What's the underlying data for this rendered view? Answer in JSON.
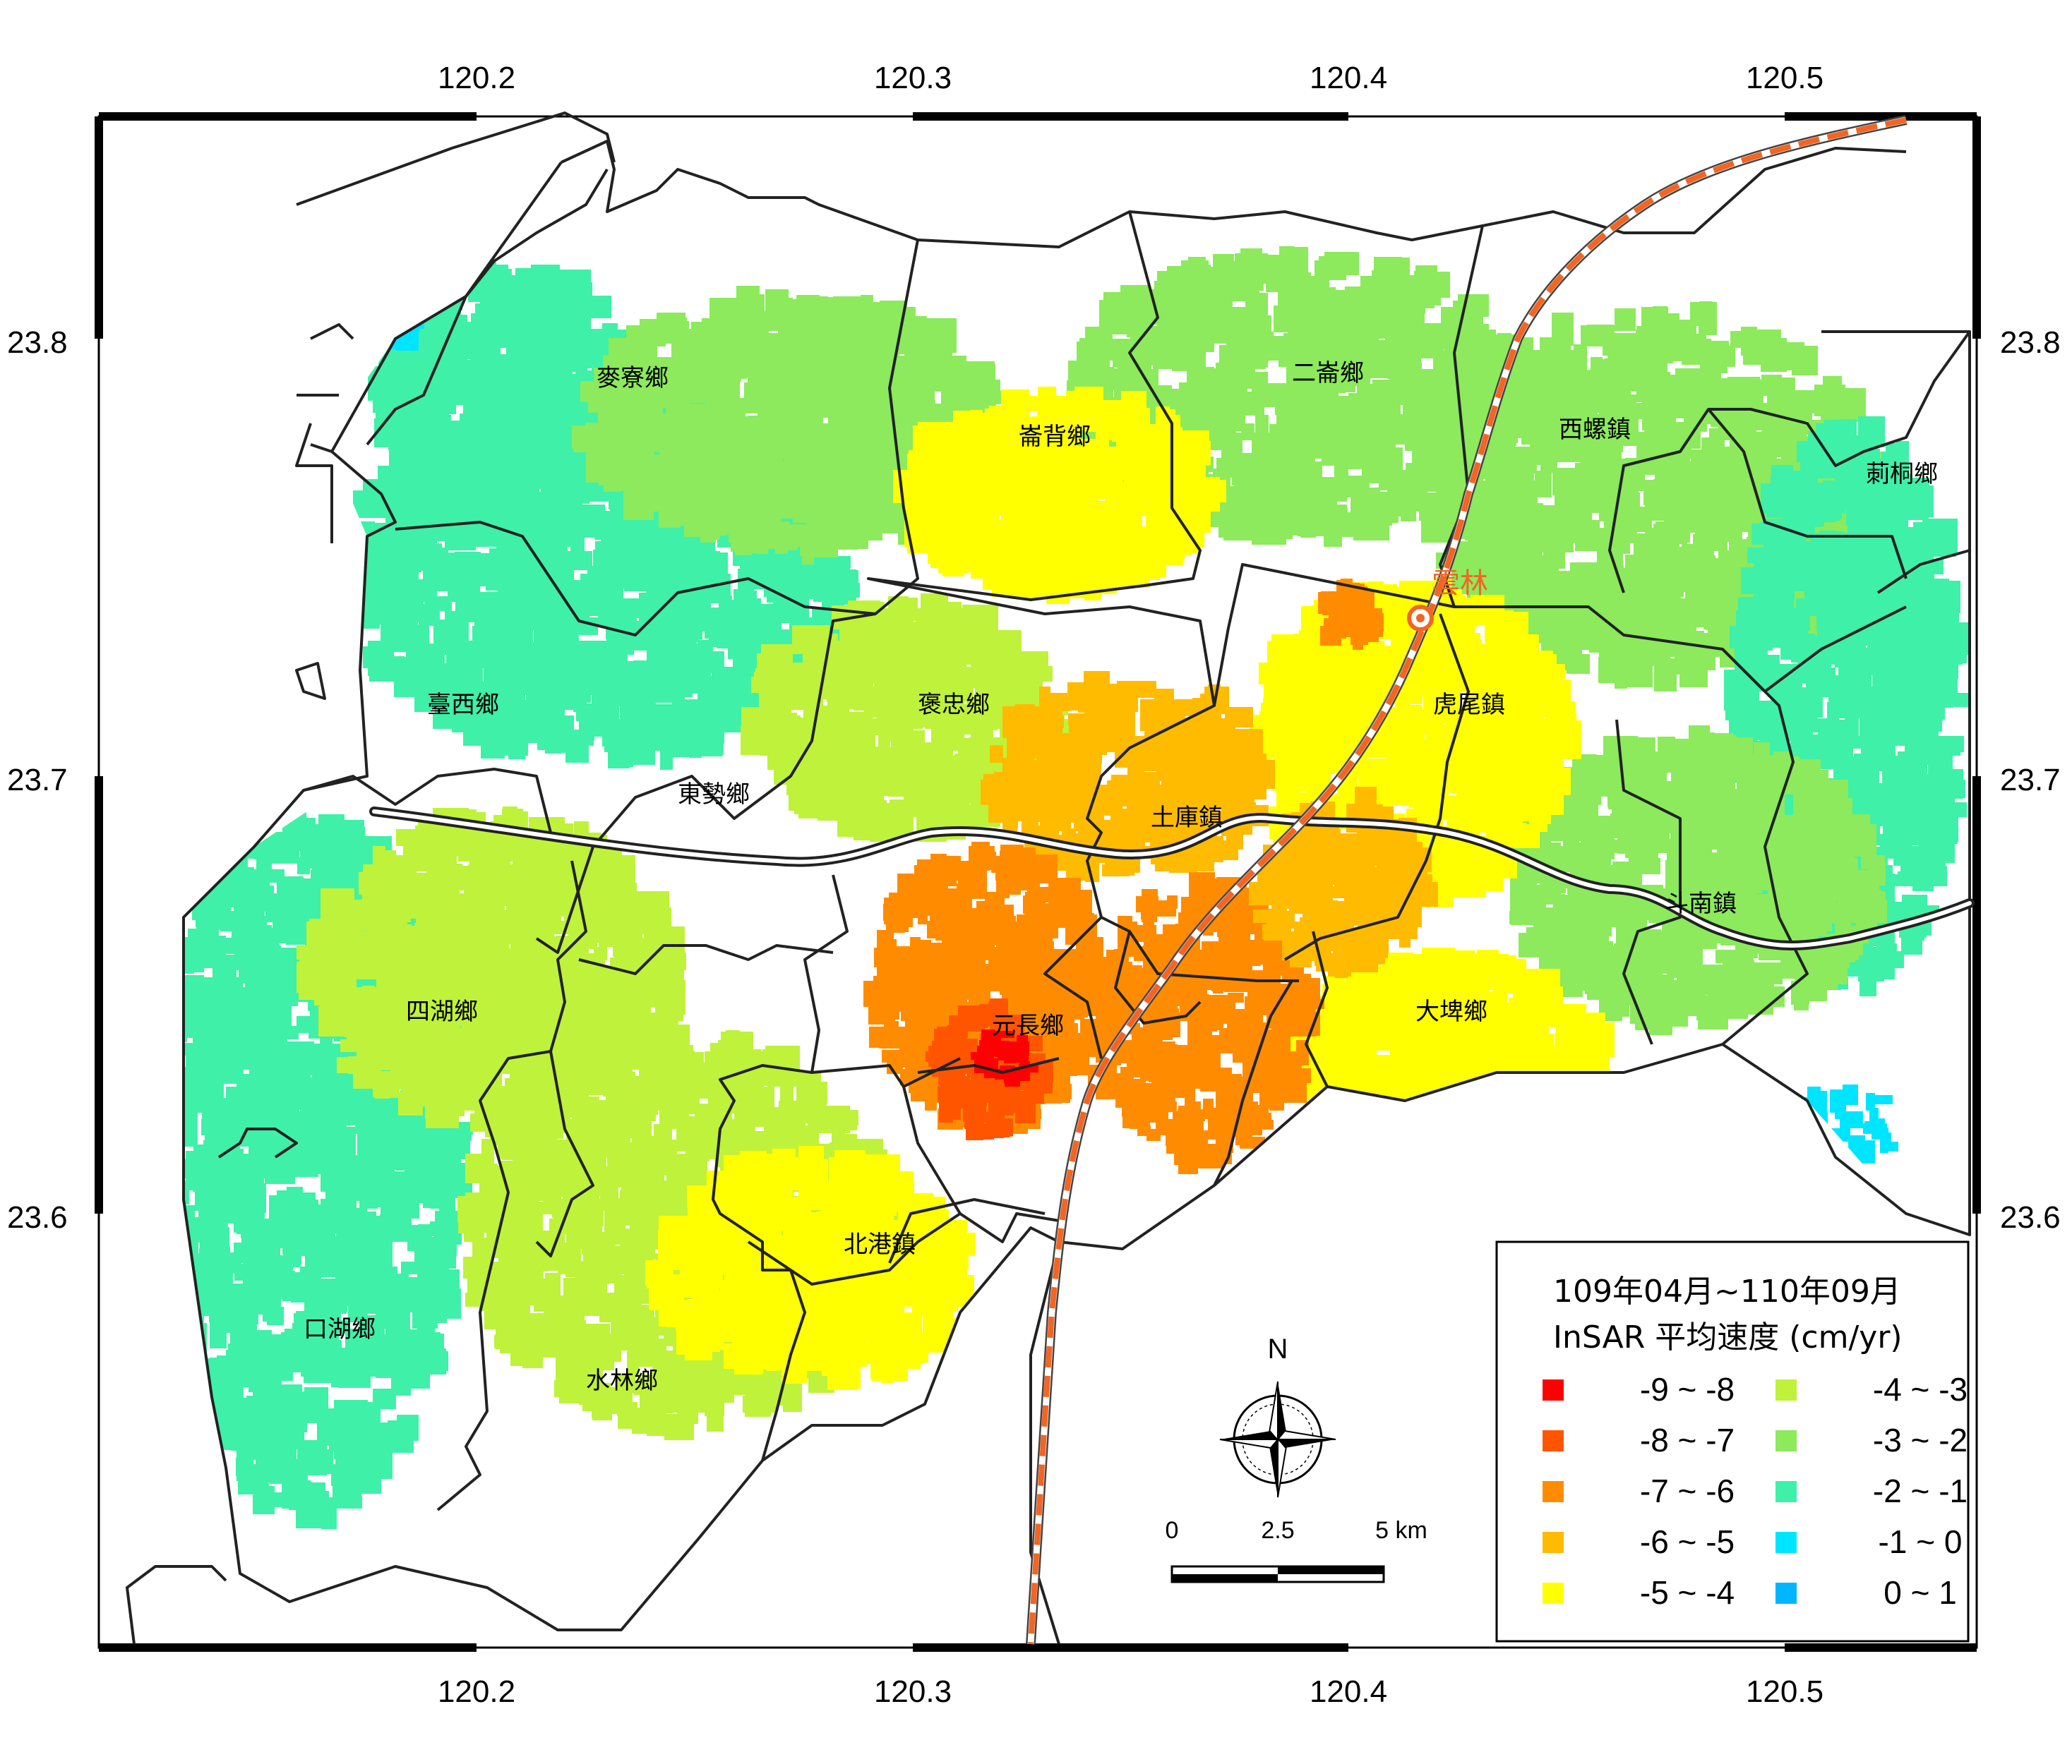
{
  "map": {
    "lon_ticks": [
      "120.2",
      "120.3",
      "120.4",
      "120.5"
    ],
    "lat_ticks": [
      "23.8",
      "23.7",
      "23.6"
    ],
    "towns": [
      {
        "key": "maizhai",
        "label": "麥寮鄉"
      },
      {
        "key": "erlun",
        "label": "二崙鄉"
      },
      {
        "key": "lunbei",
        "label": "崙背鄉"
      },
      {
        "key": "xiluo",
        "label": "西螺鎮"
      },
      {
        "key": "citong",
        "label": "莿桐鄉"
      },
      {
        "key": "taixi",
        "label": "臺西鄉"
      },
      {
        "key": "baozhong",
        "label": "褒忠鄉"
      },
      {
        "key": "huwei",
        "label": "虎尾鎮"
      },
      {
        "key": "dongshi",
        "label": "東勢鄉"
      },
      {
        "key": "tuku",
        "label": "土庫鎮"
      },
      {
        "key": "dounan",
        "label": "斗南鎮"
      },
      {
        "key": "sihu",
        "label": "四湖鄉"
      },
      {
        "key": "yuanchang",
        "label": "元長鄉"
      },
      {
        "key": "dapi",
        "label": "大埤鄉"
      },
      {
        "key": "beigang",
        "label": "北港鎮"
      },
      {
        "key": "kouhu",
        "label": "口湖鄉"
      },
      {
        "key": "shuilin",
        "label": "水林鄉"
      }
    ],
    "station": {
      "label": "雲林",
      "color": "#f26522"
    },
    "north_label": "N",
    "scale_bar": {
      "labels": [
        "0",
        "2.5",
        "5 km"
      ]
    }
  },
  "legend": {
    "title_line1": "109年04月~110年09月",
    "title_line2": "InSAR 平均速度 (cm/yr)",
    "classes": [
      {
        "label": "-9 ~ -8",
        "color": "#ff0000"
      },
      {
        "label": "-8 ~ -7",
        "color": "#ff5500"
      },
      {
        "label": "-7 ~ -6",
        "color": "#ff8c00"
      },
      {
        "label": "-6 ~ -5",
        "color": "#ffbb00"
      },
      {
        "label": "-5 ~ -4",
        "color": "#ffff00"
      },
      {
        "label": "-4 ~ -3",
        "color": "#bff23a"
      },
      {
        "label": "-3 ~ -2",
        "color": "#8cea5c"
      },
      {
        "label": "-2 ~ -1",
        "color": "#3ff0a8"
      },
      {
        "label": "-1 ~ 0",
        "color": "#00e5ff"
      },
      {
        "label": "0 ~ 1",
        "color": "#00b6ff"
      }
    ]
  },
  "colors": {
    "outline": "#222222",
    "frame": "#000000",
    "rail": "#f26522",
    "highway_fill": "#ffffff"
  }
}
